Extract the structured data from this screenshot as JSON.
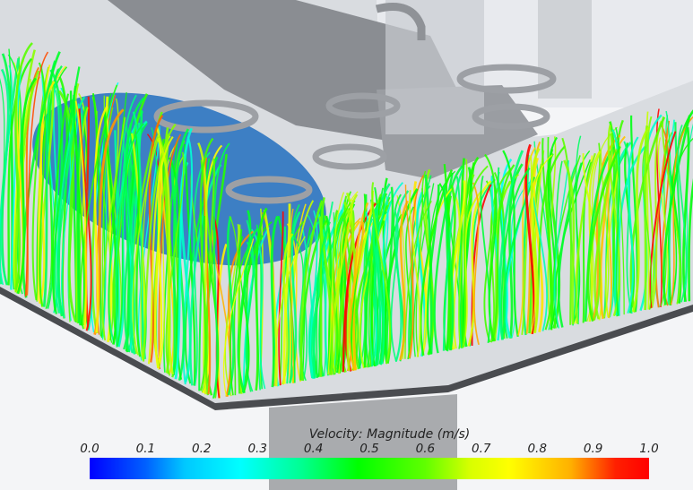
{
  "legend": {
    "title": "Velocity: Magnitude (m/s)",
    "ticks": [
      "0.0",
      "0.1",
      "0.2",
      "0.3",
      "0.4",
      "0.5",
      "0.6",
      "0.7",
      "0.8",
      "0.9",
      "1.0"
    ],
    "range": [
      0.0,
      1.0
    ],
    "colormap": [
      "#0000ff",
      "#00ffff",
      "#00ff00",
      "#ffff00",
      "#ff0000"
    ]
  },
  "colors": {
    "floor_light": "#d9dce0",
    "floor_dark": "#8a8d92",
    "pool_blue": "#3d7fc4",
    "column": "#a9abae"
  }
}
